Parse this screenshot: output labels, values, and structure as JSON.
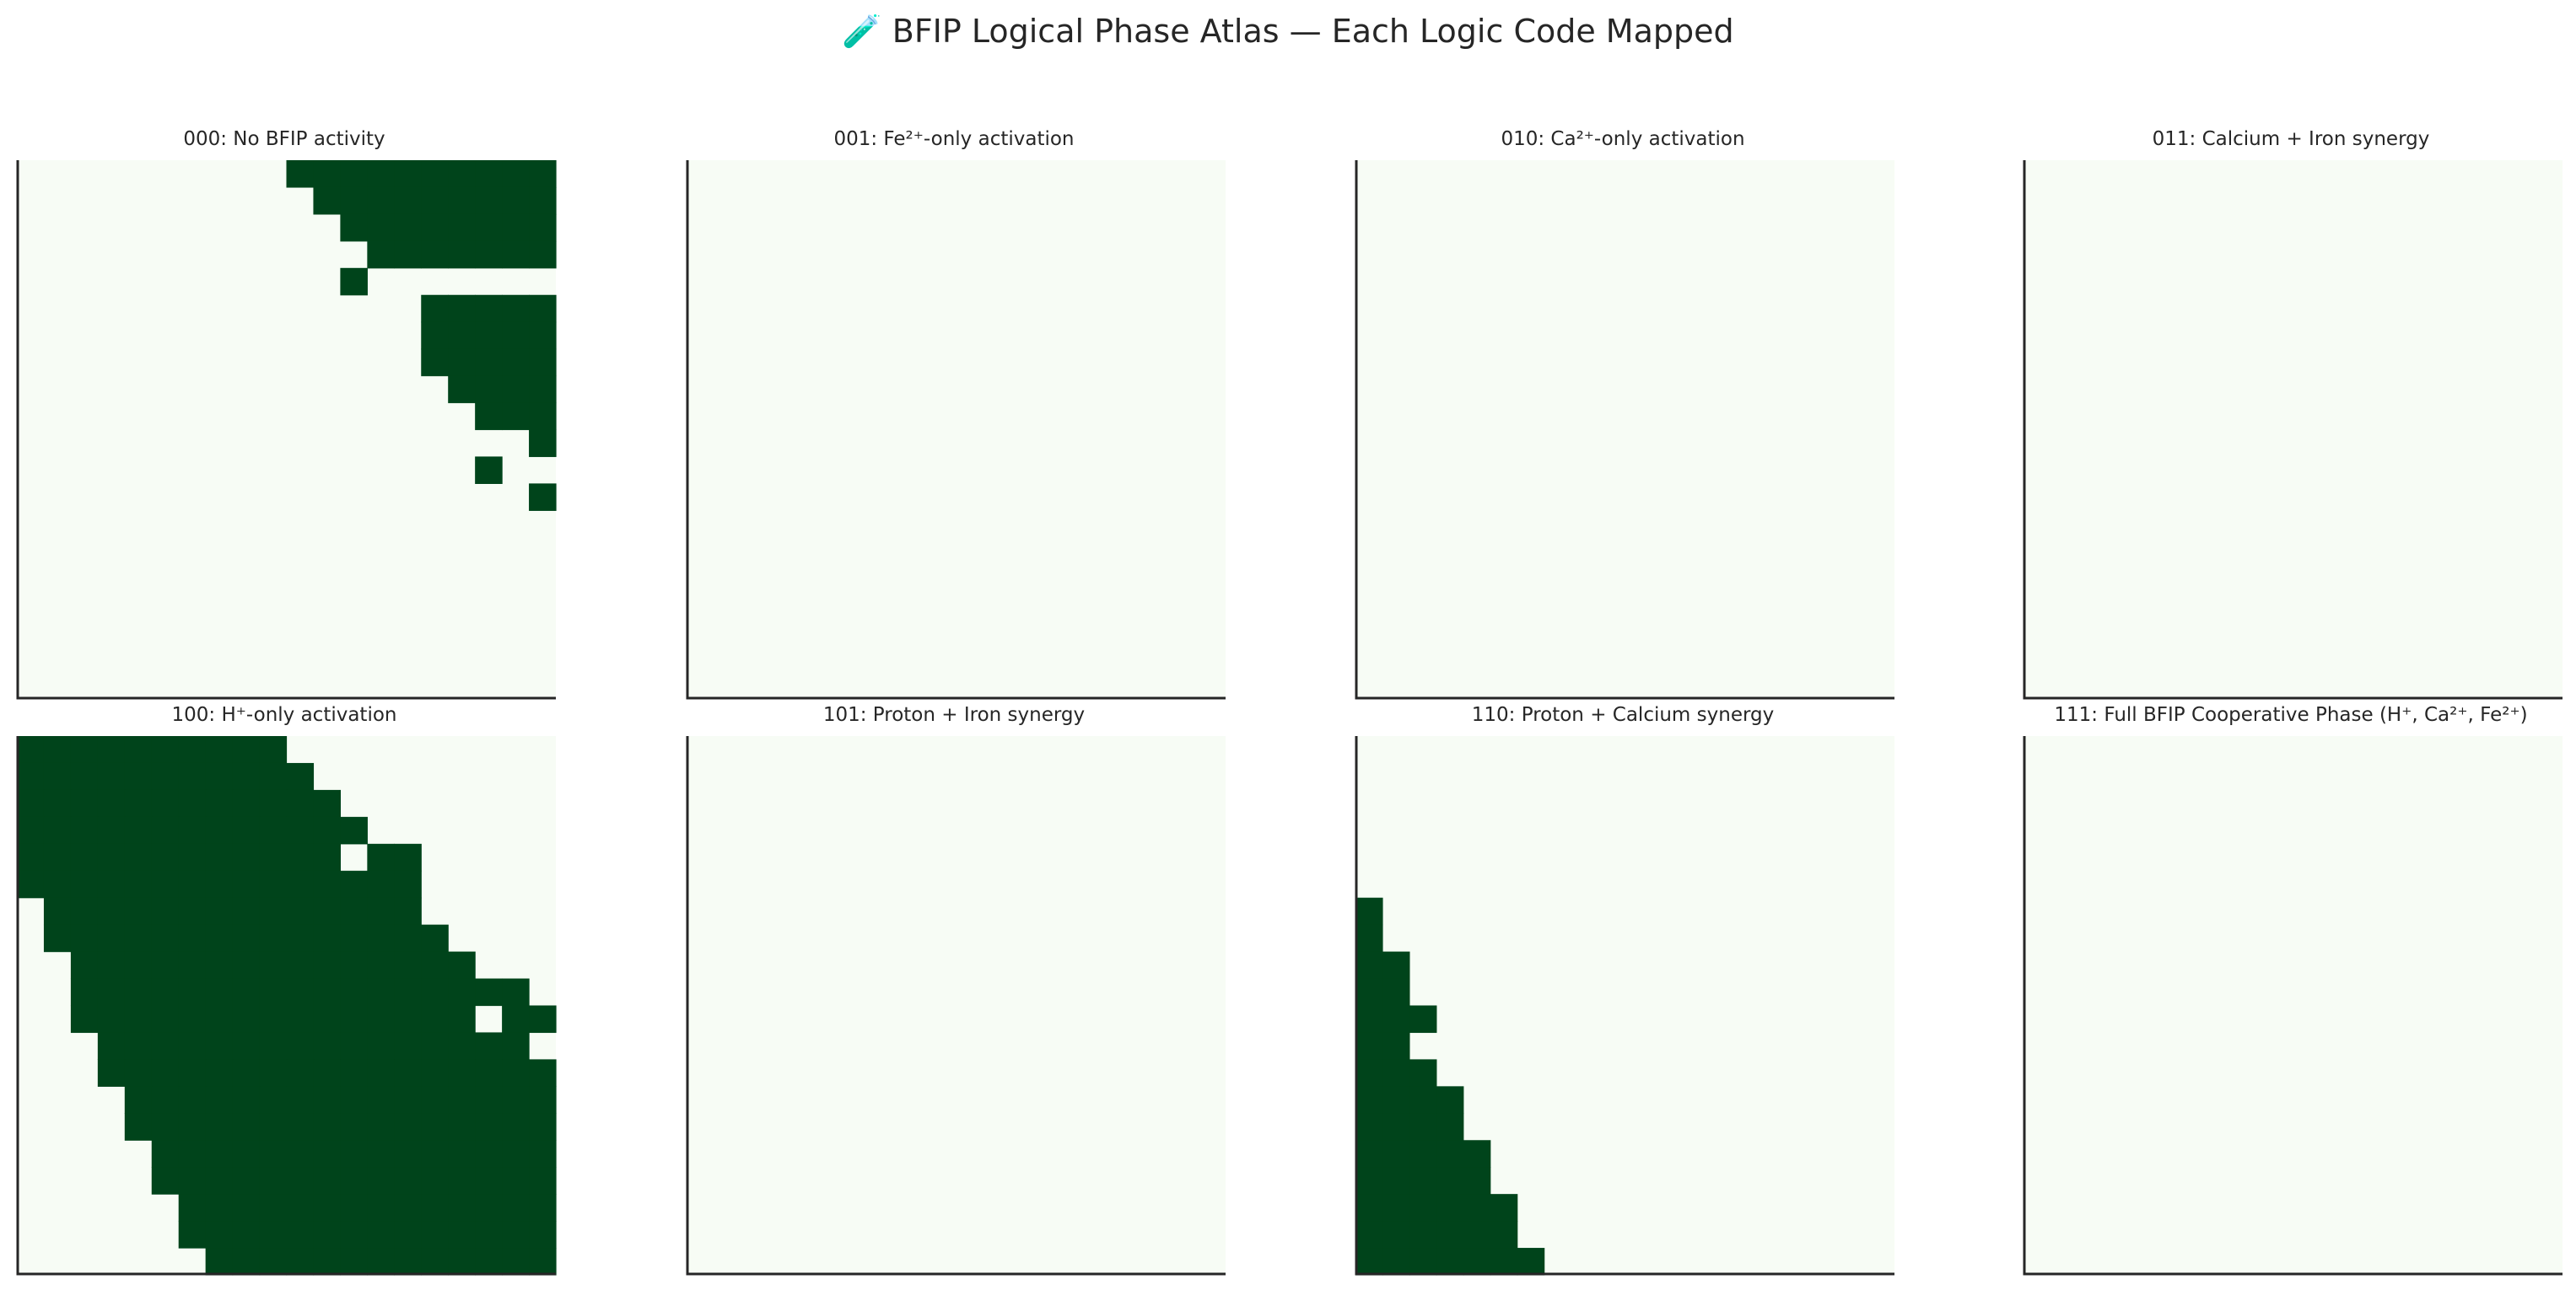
{
  "figure": {
    "title": "🧪 BFIP Logical Phase Atlas — Each Logic Code Mapped"
  },
  "colors": {
    "inactive": "#f7fcf5",
    "active": "#00441b",
    "axis": "#262626"
  },
  "chart_data": [
    {
      "type": "heatmap",
      "title": "000: No BFIP activity",
      "grid_size": [
        20,
        20
      ],
      "xlabel": "",
      "ylabel": "",
      "active_cells_by_row": [
        [
          10,
          19
        ],
        [
          11,
          19
        ],
        [
          12,
          19
        ],
        [
          13,
          19
        ],
        [
          12,
          12
        ],
        [
          15,
          19
        ],
        [
          15,
          19
        ],
        [
          15,
          19
        ],
        [
          16,
          19
        ],
        [
          17,
          19
        ],
        [
          19,
          19
        ],
        [
          17,
          17
        ],
        [
          19,
          19
        ],
        [],
        [],
        [],
        [],
        [],
        [],
        []
      ]
    },
    {
      "type": "heatmap",
      "title": "001: Fe²⁺-only activation",
      "grid_size": [
        20,
        20
      ],
      "xlabel": "",
      "ylabel": "",
      "active_cells_by_row": [
        [],
        [],
        [],
        [],
        [],
        [],
        [],
        [],
        [],
        [],
        [],
        [],
        [],
        [],
        [],
        [],
        [],
        [],
        [],
        []
      ]
    },
    {
      "type": "heatmap",
      "title": "010: Ca²⁺-only activation",
      "grid_size": [
        20,
        20
      ],
      "xlabel": "",
      "ylabel": "",
      "active_cells_by_row": [
        [],
        [],
        [],
        [],
        [],
        [],
        [],
        [],
        [],
        [],
        [],
        [],
        [],
        [],
        [],
        [],
        [],
        [],
        [],
        []
      ]
    },
    {
      "type": "heatmap",
      "title": "011: Calcium + Iron synergy",
      "grid_size": [
        20,
        20
      ],
      "xlabel": "",
      "ylabel": "",
      "active_cells_by_row": [
        [],
        [],
        [],
        [],
        [],
        [],
        [],
        [],
        [],
        [],
        [],
        [],
        [],
        [],
        [],
        [],
        [],
        [],
        [],
        []
      ]
    },
    {
      "type": "heatmap",
      "title": "100: H⁺-only activation",
      "grid_size": [
        20,
        20
      ],
      "xlabel": "",
      "ylabel": "",
      "active_cells_by_row": [
        [
          0,
          9
        ],
        [
          0,
          10
        ],
        [
          0,
          11
        ],
        [
          0,
          12
        ],
        [
          0,
          11,
          13,
          14
        ],
        [
          0,
          14
        ],
        [
          1,
          14
        ],
        [
          1,
          15
        ],
        [
          2,
          16
        ],
        [
          2,
          18
        ],
        [
          2,
          16,
          18,
          19
        ],
        [
          3,
          18
        ],
        [
          3,
          19
        ],
        [
          4,
          19
        ],
        [
          4,
          19
        ],
        [
          5,
          19
        ],
        [
          5,
          19
        ],
        [
          6,
          19
        ],
        [
          6,
          19
        ],
        [
          7,
          19
        ]
      ]
    },
    {
      "type": "heatmap",
      "title": "101: Proton + Iron synergy",
      "grid_size": [
        20,
        20
      ],
      "xlabel": "",
      "ylabel": "",
      "active_cells_by_row": [
        [],
        [],
        [],
        [],
        [],
        [],
        [],
        [],
        [],
        [],
        [],
        [],
        [],
        [],
        [],
        [],
        [],
        [],
        [],
        []
      ]
    },
    {
      "type": "heatmap",
      "title": "110: Proton + Calcium synergy",
      "grid_size": [
        20,
        20
      ],
      "xlabel": "",
      "ylabel": "",
      "active_cells_by_row": [
        [],
        [],
        [],
        [],
        [],
        [],
        [
          0,
          0
        ],
        [
          0,
          0
        ],
        [
          0,
          1
        ],
        [
          0,
          1
        ],
        [
          0,
          2
        ],
        [
          0,
          1
        ],
        [
          0,
          2
        ],
        [
          0,
          3
        ],
        [
          0,
          3
        ],
        [
          0,
          4
        ],
        [
          0,
          4
        ],
        [
          0,
          5
        ],
        [
          0,
          5
        ],
        [
          0,
          6
        ]
      ]
    },
    {
      "type": "heatmap",
      "title": "111: Full BFIP Cooperative Phase (H⁺, Ca²⁺, Fe²⁺)",
      "grid_size": [
        20,
        20
      ],
      "xlabel": "",
      "ylabel": "",
      "active_cells_by_row": [
        [],
        [],
        [],
        [],
        [],
        [],
        [],
        [],
        [],
        [],
        [],
        [],
        [],
        [],
        [],
        [],
        [],
        [],
        [],
        []
      ]
    }
  ]
}
